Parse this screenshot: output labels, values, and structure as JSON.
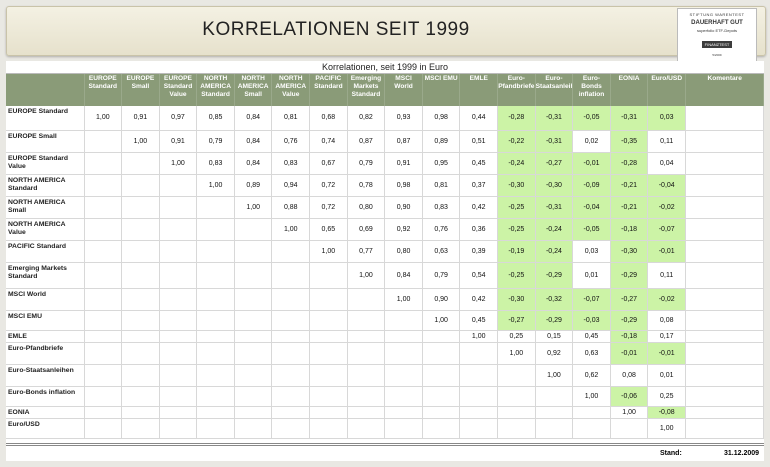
{
  "header": {
    "title": "KORRELATIONEN SEIT 1999",
    "seal": {
      "line1": "STIFTUNG WARENTEST",
      "line2": "DAUERHAFT GUT",
      "line3": "superfolio ETF-Depots",
      "line4": "FINANZTEST",
      "line5": "5/2009"
    }
  },
  "table": {
    "caption": "Korrelationen, seit 1999 in Euro",
    "columns": [
      "EUROPE Standard",
      "EUROPE Small",
      "EUROPE Standard Value",
      "NORTH AMERICA Standard",
      "NORTH AMERICA Small",
      "NORTH AMERICA Value",
      "PACIFIC Standard",
      "Emerging Markets Standard",
      "MSCI World",
      "MSCI EMU",
      "EMLE",
      "Euro-Pfandbriefe",
      "Euro-Staatsanleihen",
      "Euro-Bonds inflation",
      "EONIA",
      "Euro/USD"
    ],
    "comment_header": "Komentare",
    "rows": [
      {
        "label": "EUROPE Standard",
        "cells": [
          "1,00",
          "0,91",
          "0,97",
          "0,85",
          "0,84",
          "0,81",
          "0,68",
          "0,82",
          "0,93",
          "0,98",
          "0,44",
          "-0,28",
          "-0,31",
          "-0,05",
          "-0,31",
          "0,03"
        ]
      },
      {
        "label": "EUROPE Small",
        "cells": [
          "",
          "1,00",
          "0,91",
          "0,79",
          "0,84",
          "0,76",
          "0,74",
          "0,87",
          "0,87",
          "0,89",
          "0,51",
          "-0,22",
          "-0,31",
          "0,02",
          "-0,35",
          "0,11"
        ]
      },
      {
        "label": "EUROPE Standard Value",
        "cells": [
          "",
          "",
          "1,00",
          "0,83",
          "0,84",
          "0,83",
          "0,67",
          "0,79",
          "0,91",
          "0,95",
          "0,45",
          "-0,24",
          "-0,27",
          "-0,01",
          "-0,28",
          "0,04"
        ]
      },
      {
        "label": "NORTH AMERICA Standard",
        "cells": [
          "",
          "",
          "",
          "1,00",
          "0,89",
          "0,94",
          "0,72",
          "0,78",
          "0,98",
          "0,81",
          "0,37",
          "-0,30",
          "-0,30",
          "-0,09",
          "-0,21",
          "-0,04"
        ]
      },
      {
        "label": "NORTH AMERICA Small",
        "cells": [
          "",
          "",
          "",
          "",
          "1,00",
          "0,88",
          "0,72",
          "0,80",
          "0,90",
          "0,83",
          "0,42",
          "-0,25",
          "-0,31",
          "-0,04",
          "-0,21",
          "-0,02"
        ]
      },
      {
        "label": "NORTH AMERICA Value",
        "cells": [
          "",
          "",
          "",
          "",
          "",
          "1,00",
          "0,65",
          "0,69",
          "0,92",
          "0,76",
          "0,36",
          "-0,25",
          "-0,24",
          "-0,05",
          "-0,18",
          "-0,07"
        ]
      },
      {
        "label": "PACIFIC Standard",
        "cells": [
          "",
          "",
          "",
          "",
          "",
          "",
          "1,00",
          "0,77",
          "0,80",
          "0,63",
          "0,39",
          "-0,19",
          "-0,24",
          "0,03",
          "-0,30",
          "-0,01"
        ]
      },
      {
        "label": "Emerging Markets Standard",
        "cells": [
          "",
          "",
          "",
          "",
          "",
          "",
          "",
          "1,00",
          "0,84",
          "0,79",
          "0,54",
          "-0,25",
          "-0,29",
          "0,01",
          "-0,29",
          "0,11"
        ]
      },
      {
        "label": "MSCI World",
        "cells": [
          "",
          "",
          "",
          "",
          "",
          "",
          "",
          "",
          "1,00",
          "0,90",
          "0,42",
          "-0,30",
          "-0,32",
          "-0,07",
          "-0,27",
          "-0,02"
        ]
      },
      {
        "label": "MSCI EMU",
        "cells": [
          "",
          "",
          "",
          "",
          "",
          "",
          "",
          "",
          "",
          "1,00",
          "0,45",
          "-0,27",
          "-0,29",
          "-0,03",
          "-0,29",
          "0,08"
        ]
      },
      {
        "label": "EMLE",
        "cells": [
          "",
          "",
          "",
          "",
          "",
          "",
          "",
          "",
          "",
          "",
          "1,00",
          "0,25",
          "0,15",
          "0,45",
          "-0,18",
          "0,17"
        ]
      },
      {
        "label": "Euro-Pfandbriefe",
        "cells": [
          "",
          "",
          "",
          "",
          "",
          "",
          "",
          "",
          "",
          "",
          "",
          "1,00",
          "0,92",
          "0,63",
          "-0,01",
          "-0,01"
        ]
      },
      {
        "label": "Euro-Staatsanleihen",
        "cells": [
          "",
          "",
          "",
          "",
          "",
          "",
          "",
          "",
          "",
          "",
          "",
          "",
          "1,00",
          "0,62",
          "0,08",
          "0,01"
        ]
      },
      {
        "label": "Euro-Bonds inflation",
        "cells": [
          "",
          "",
          "",
          "",
          "",
          "",
          "",
          "",
          "",
          "",
          "",
          "",
          "",
          "1,00",
          "-0,06",
          "0,25"
        ]
      },
      {
        "label": "EONIA",
        "cells": [
          "",
          "",
          "",
          "",
          "",
          "",
          "",
          "",
          "",
          "",
          "",
          "",
          "",
          "",
          "1,00",
          "-0,08"
        ]
      },
      {
        "label": "Euro/USD",
        "cells": [
          "",
          "",
          "",
          "",
          "",
          "",
          "",
          "",
          "",
          "",
          "",
          "",
          "",
          "",
          "",
          "1,00"
        ]
      }
    ],
    "highlight_color": "#ccf3a6",
    "header_color": "#8a9b78"
  },
  "footer": {
    "label": "Stand:",
    "value": "31.12.2009"
  }
}
